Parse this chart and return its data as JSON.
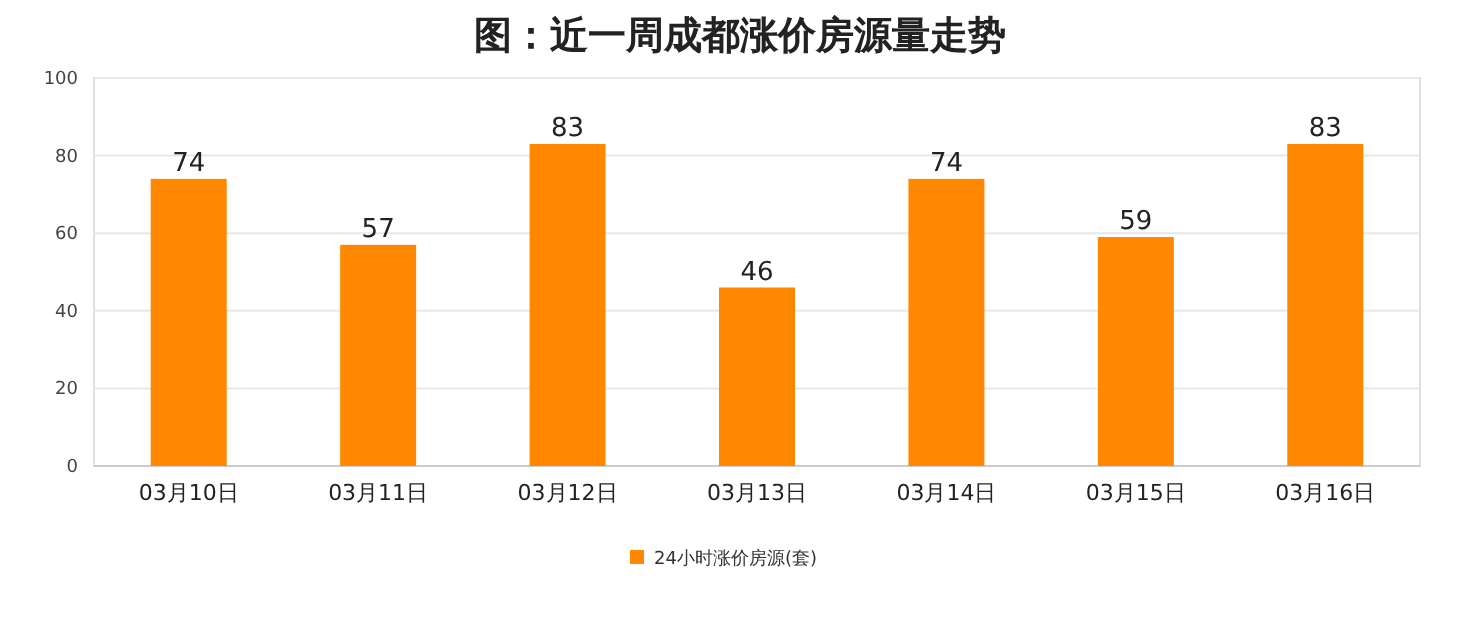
{
  "chart_data": {
    "type": "bar",
    "title": "图：近一周成都涨价房源量走势",
    "categories": [
      "03月10日",
      "03月11日",
      "03月12日",
      "03月13日",
      "03月14日",
      "03月15日",
      "03月16日"
    ],
    "series": [
      {
        "name": "24小时涨价房源(套)",
        "color": "#ff8800",
        "values": [
          74,
          57,
          83,
          46,
          74,
          59,
          83
        ]
      }
    ],
    "ylim": [
      0,
      100
    ],
    "yticks": [
      0,
      20,
      40,
      60,
      80,
      100
    ],
    "grid": "y",
    "legend": "bottom",
    "data_labels": true
  }
}
